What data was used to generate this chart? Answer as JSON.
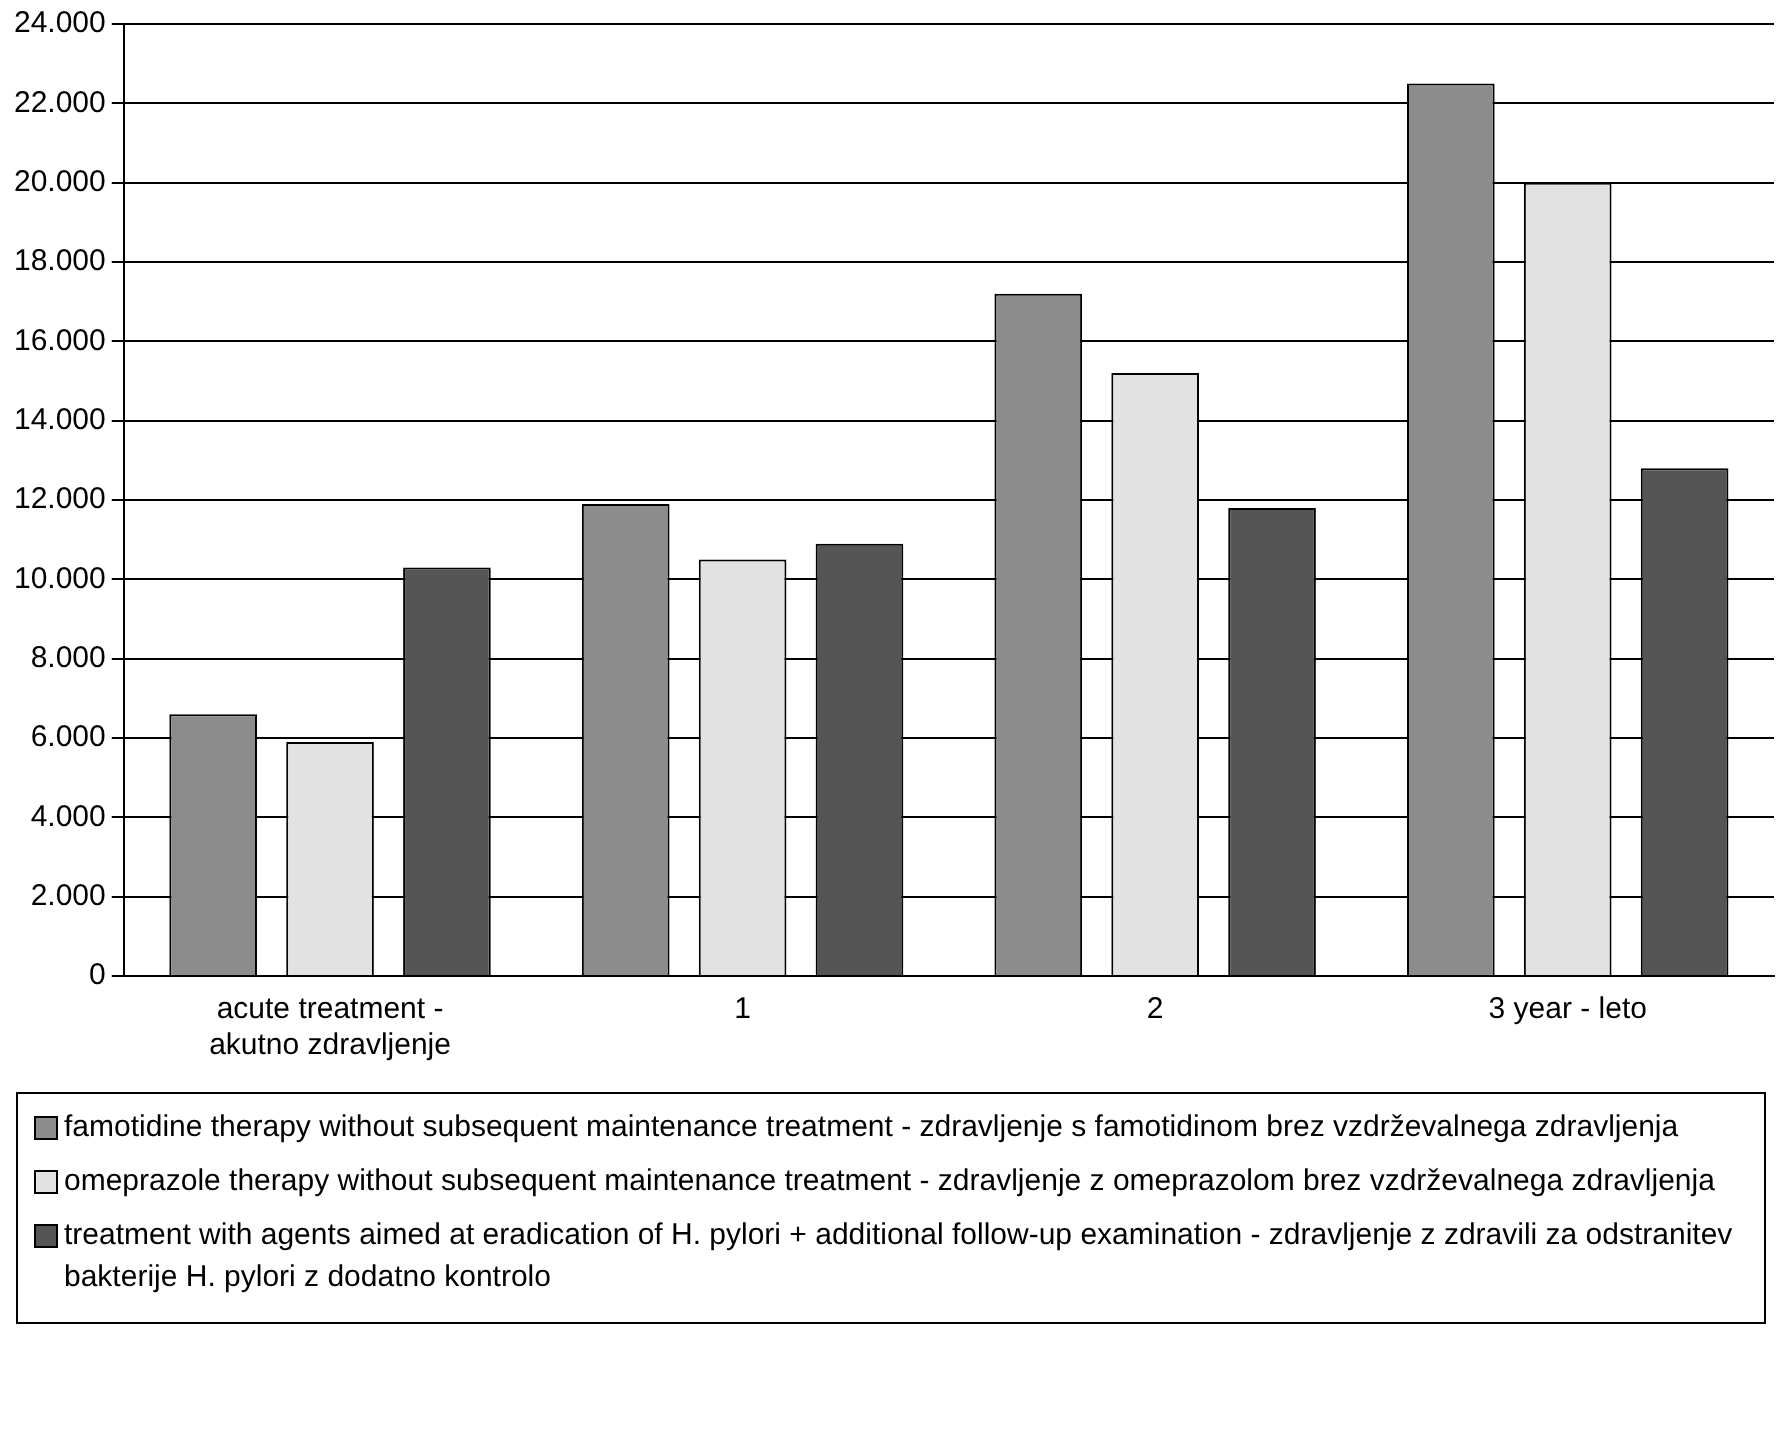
{
  "chart_data": {
    "type": "bar",
    "categories": [
      "acute treatment - akutno zdravljenje",
      "1",
      "2",
      "3 year - leto"
    ],
    "series": [
      {
        "name": "famotidine therapy without subsequent maintenance treatment - zdravljenje s famotidinom brez vzdrževalnega zdravljenja",
        "color": "#8c8c8c",
        "values": [
          6600,
          11900,
          17200,
          22500
        ]
      },
      {
        "name": "omeprazole therapy without subsequent maintenance treatment - zdravljenje z omeprazolom brez vzdrževalnega zdravljenja",
        "color": "#e2e2e2",
        "values": [
          5900,
          10500,
          15200,
          20000
        ]
      },
      {
        "name": "treatment with agents aimed at eradication of H. pylori + additional follow-up examination - zdravljenje z zdravili za odstranitev bakterije H. pylori z dodatno kontrolo",
        "color": "#555555",
        "values": [
          10300,
          10900,
          11800,
          12800
        ]
      }
    ],
    "ylim": [
      0,
      24000
    ],
    "yticks": [
      0,
      {
        "value": 2000,
        "label": "2.000"
      },
      {
        "value": 4000,
        "label": "4.000"
      },
      {
        "value": 6000,
        "label": "6.000"
      },
      {
        "value": 8000,
        "label": "8.000"
      },
      {
        "value": 10000,
        "label": "10.000"
      },
      {
        "value": 12000,
        "label": "12.000"
      },
      {
        "value": 14000,
        "label": "14.000"
      },
      {
        "value": 16000,
        "label": "16.000"
      },
      {
        "value": 18000,
        "label": "18.000"
      },
      {
        "value": 20000,
        "label": "20.000"
      },
      {
        "value": 22000,
        "label": "22.000"
      },
      {
        "value": 24000,
        "label": "24.000"
      }
    ],
    "grid": "y",
    "legend": "bottom"
  }
}
